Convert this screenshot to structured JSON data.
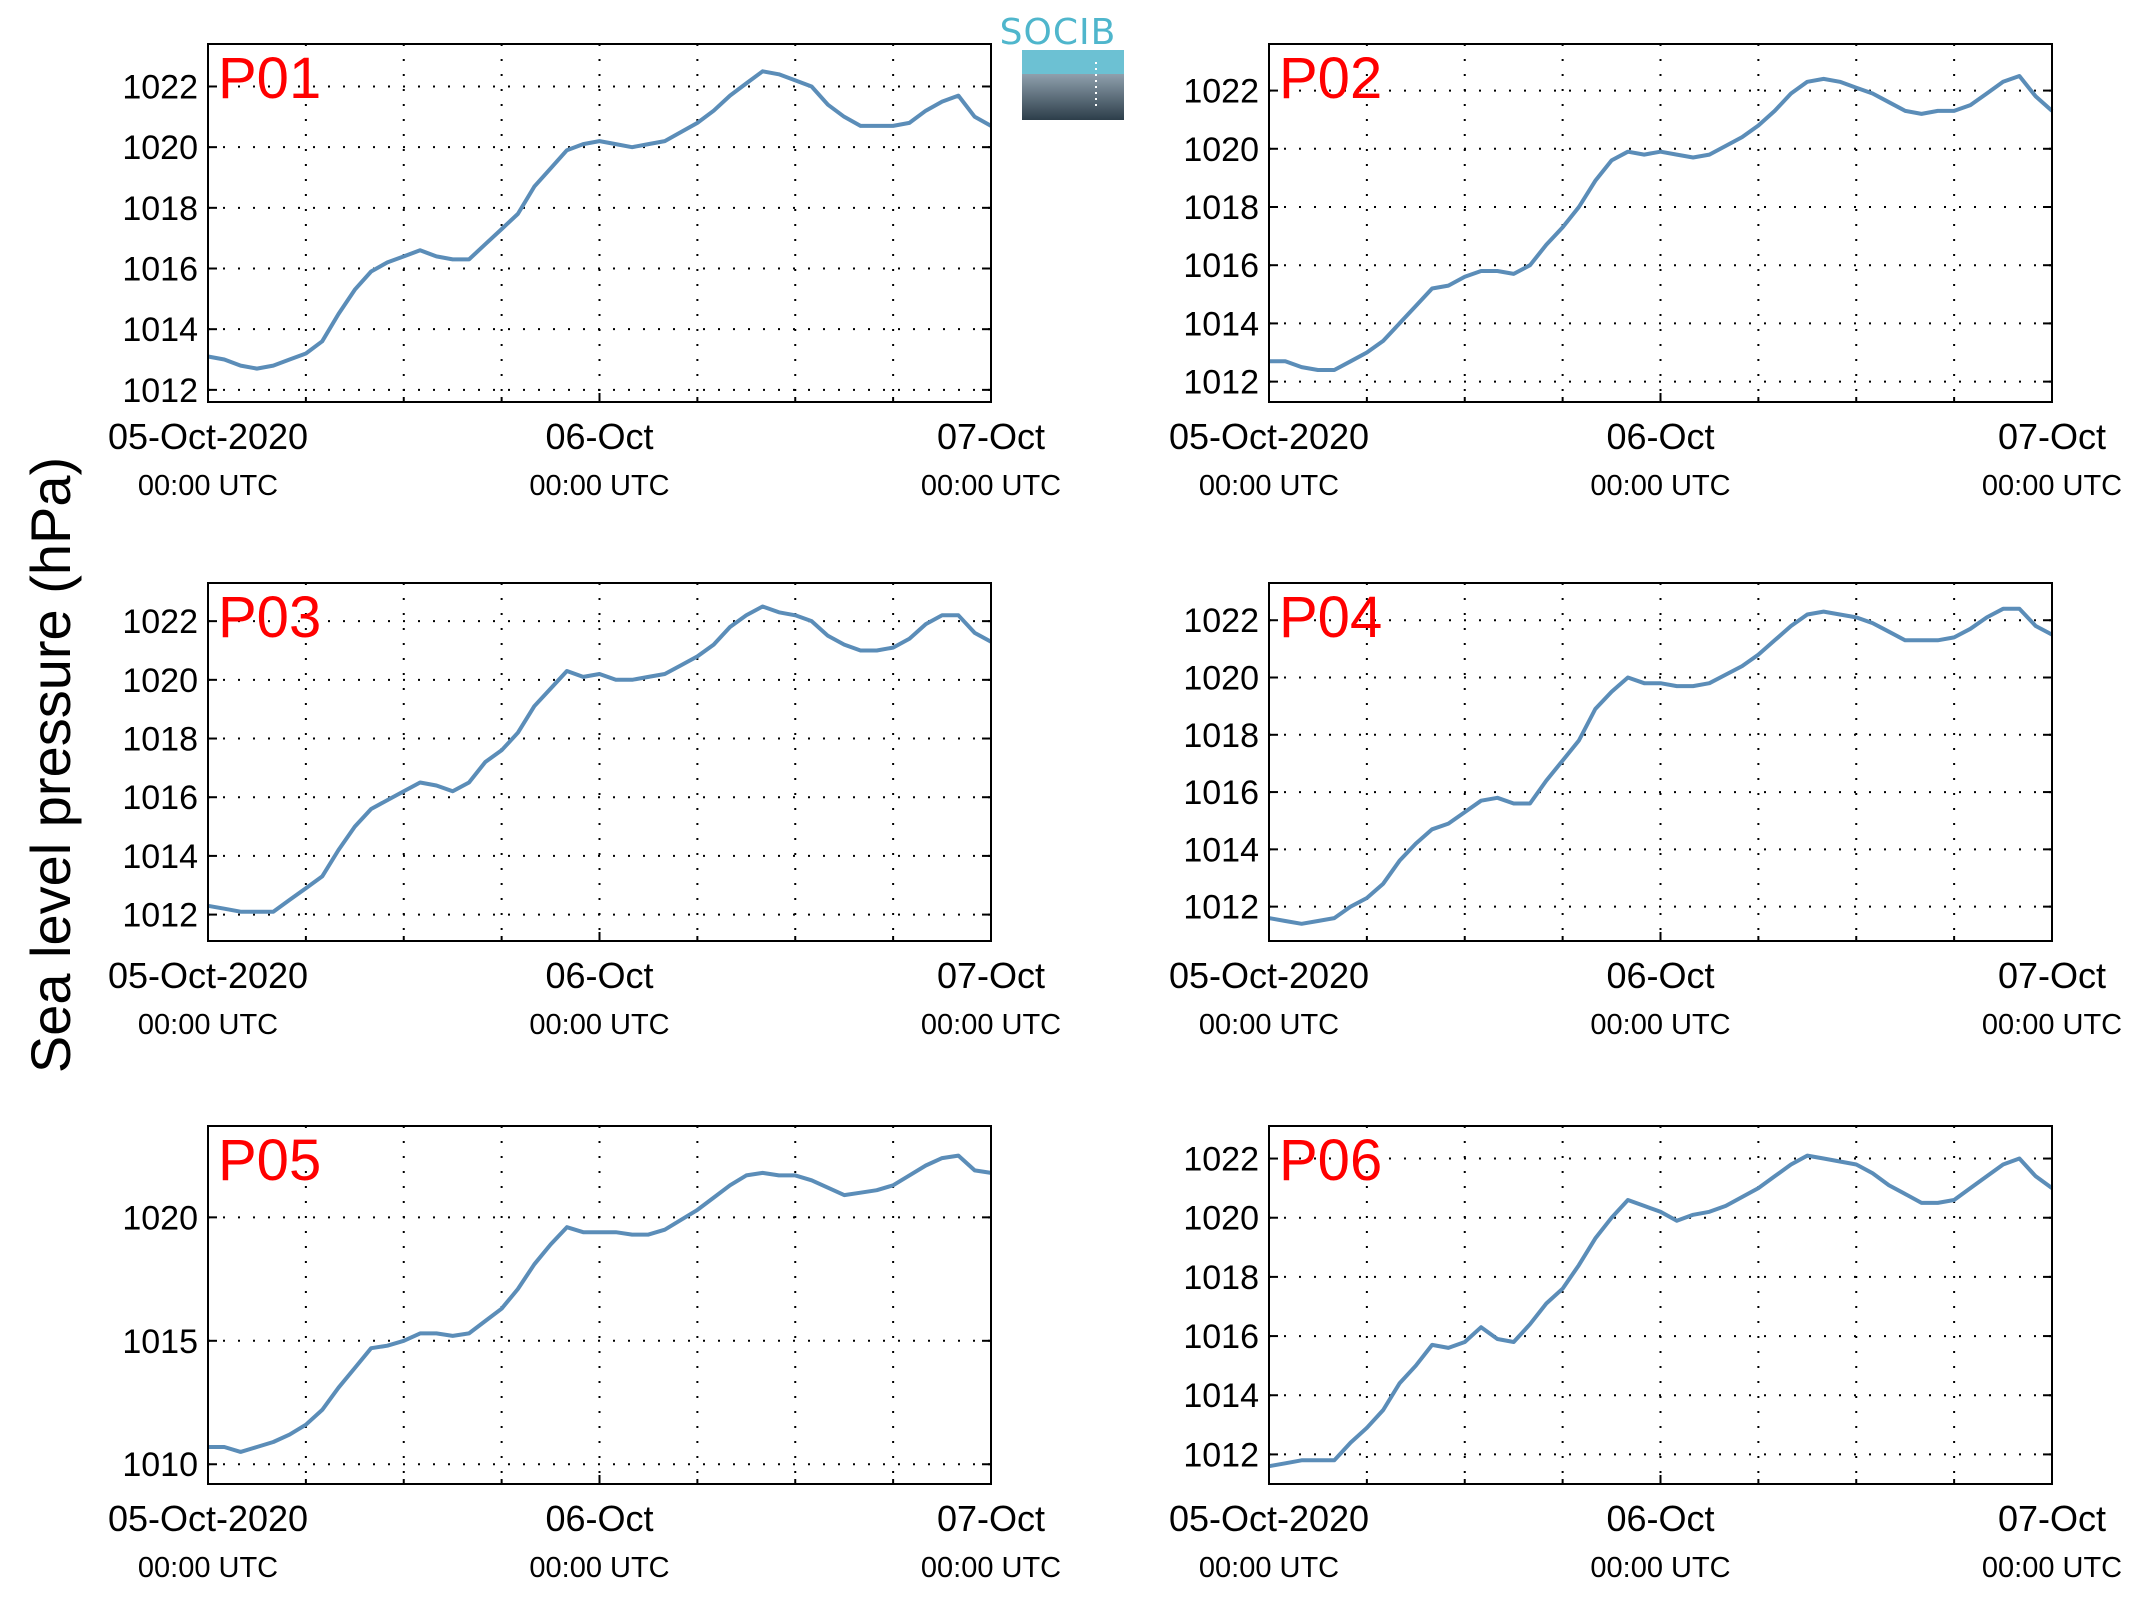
{
  "figure": {
    "ylabel": "Sea level pressure (hPa)",
    "logo_text": "SOCIB",
    "line_color": "#5b8db8",
    "label_color": "#ff0000"
  },
  "chart_data": [
    {
      "type": "line",
      "name": "P01",
      "ylim": [
        1011.6,
        1023.4
      ],
      "yticks": [
        1012,
        1014,
        1016,
        1018,
        1020,
        1022
      ],
      "xlim": [
        0,
        48
      ],
      "xticks": [
        0,
        24,
        48
      ],
      "xtick_labels": [
        [
          "05-Oct-2020",
          "00:00 UTC"
        ],
        [
          "06-Oct",
          "00:00 UTC"
        ],
        [
          "07-Oct",
          "00:00 UTC"
        ]
      ],
      "grid": true,
      "x": [
        0,
        1,
        2,
        3,
        4,
        5,
        6,
        7,
        8,
        9,
        10,
        11,
        12,
        13,
        14,
        15,
        16,
        17,
        18,
        19,
        20,
        21,
        22,
        23,
        24,
        25,
        26,
        27,
        28,
        29,
        30,
        31,
        32,
        33,
        34,
        35,
        36,
        37,
        38,
        39,
        40,
        41,
        42,
        43,
        44,
        45,
        46,
        47,
        48
      ],
      "values": [
        1013.1,
        1013.0,
        1012.8,
        1012.7,
        1012.8,
        1013.0,
        1013.2,
        1013.6,
        1014.5,
        1015.3,
        1015.9,
        1016.2,
        1016.4,
        1016.6,
        1016.4,
        1016.3,
        1016.3,
        1016.8,
        1017.3,
        1017.8,
        1018.7,
        1019.3,
        1019.9,
        1020.1,
        1020.2,
        1020.1,
        1020.0,
        1020.1,
        1020.2,
        1020.5,
        1020.8,
        1021.2,
        1021.7,
        1022.1,
        1022.5,
        1022.4,
        1022.2,
        1022.0,
        1021.4,
        1021.0,
        1020.7,
        1020.7,
        1020.7,
        1020.8,
        1021.2,
        1021.5,
        1021.7,
        1021.0,
        1020.7
      ]
    },
    {
      "type": "line",
      "name": "P02",
      "ylim": [
        1011.3,
        1023.6
      ],
      "yticks": [
        1012,
        1014,
        1016,
        1018,
        1020,
        1022
      ],
      "xlim": [
        0,
        48
      ],
      "xticks": [
        0,
        24,
        48
      ],
      "xtick_labels": [
        [
          "05-Oct-2020",
          "00:00 UTC"
        ],
        [
          "06-Oct",
          "00:00 UTC"
        ],
        [
          "07-Oct",
          "00:00 UTC"
        ]
      ],
      "grid": true,
      "x": [
        0,
        1,
        2,
        3,
        4,
        5,
        6,
        7,
        8,
        9,
        10,
        11,
        12,
        13,
        14,
        15,
        16,
        17,
        18,
        19,
        20,
        21,
        22,
        23,
        24,
        25,
        26,
        27,
        28,
        29,
        30,
        31,
        32,
        33,
        34,
        35,
        36,
        37,
        38,
        39,
        40,
        41,
        42,
        43,
        44,
        45,
        46,
        47,
        48
      ],
      "values": [
        1012.7,
        1012.7,
        1012.5,
        1012.4,
        1012.4,
        1012.7,
        1013.0,
        1013.4,
        1014.0,
        1014.6,
        1015.2,
        1015.3,
        1015.6,
        1015.8,
        1015.8,
        1015.7,
        1016.0,
        1016.7,
        1017.3,
        1018.0,
        1018.9,
        1019.6,
        1019.9,
        1019.8,
        1019.9,
        1019.8,
        1019.7,
        1019.8,
        1020.1,
        1020.4,
        1020.8,
        1021.3,
        1021.9,
        1022.3,
        1022.4,
        1022.3,
        1022.1,
        1021.9,
        1021.6,
        1021.3,
        1021.2,
        1021.3,
        1021.3,
        1021.5,
        1021.9,
        1022.3,
        1022.5,
        1021.8,
        1021.3
      ]
    },
    {
      "type": "line",
      "name": "P03",
      "ylim": [
        1011.1,
        1023.3
      ],
      "yticks": [
        1012,
        1014,
        1016,
        1018,
        1020,
        1022
      ],
      "xlim": [
        0,
        48
      ],
      "xticks": [
        0,
        24,
        48
      ],
      "xtick_labels": [
        [
          "05-Oct-2020",
          "00:00 UTC"
        ],
        [
          "06-Oct",
          "00:00 UTC"
        ],
        [
          "07-Oct",
          "00:00 UTC"
        ]
      ],
      "grid": true,
      "x": [
        0,
        1,
        2,
        3,
        4,
        5,
        6,
        7,
        8,
        9,
        10,
        11,
        12,
        13,
        14,
        15,
        16,
        17,
        18,
        19,
        20,
        21,
        22,
        23,
        24,
        25,
        26,
        27,
        28,
        29,
        30,
        31,
        32,
        33,
        34,
        35,
        36,
        37,
        38,
        39,
        40,
        41,
        42,
        43,
        44,
        45,
        46,
        47,
        48
      ],
      "values": [
        1012.3,
        1012.2,
        1012.1,
        1012.1,
        1012.1,
        1012.5,
        1012.9,
        1013.3,
        1014.2,
        1015.0,
        1015.6,
        1015.9,
        1016.2,
        1016.5,
        1016.4,
        1016.2,
        1016.5,
        1017.2,
        1017.6,
        1018.2,
        1019.1,
        1019.7,
        1020.3,
        1020.1,
        1020.2,
        1020.0,
        1020.0,
        1020.1,
        1020.2,
        1020.5,
        1020.8,
        1021.2,
        1021.8,
        1022.2,
        1022.5,
        1022.3,
        1022.2,
        1022.0,
        1021.5,
        1021.2,
        1021.0,
        1021.0,
        1021.1,
        1021.4,
        1021.9,
        1022.2,
        1022.2,
        1021.6,
        1021.3
      ]
    },
    {
      "type": "line",
      "name": "P04",
      "ylim": [
        1010.8,
        1023.3
      ],
      "yticks": [
        1012,
        1014,
        1016,
        1018,
        1020,
        1022
      ],
      "xlim": [
        0,
        48
      ],
      "xticks": [
        0,
        24,
        48
      ],
      "xtick_labels": [
        [
          "05-Oct-2020",
          "00:00 UTC"
        ],
        [
          "06-Oct",
          "00:00 UTC"
        ],
        [
          "07-Oct",
          "00:00 UTC"
        ]
      ],
      "grid": true,
      "x": [
        0,
        1,
        2,
        3,
        4,
        5,
        6,
        7,
        8,
        9,
        10,
        11,
        12,
        13,
        14,
        15,
        16,
        17,
        18,
        19,
        20,
        21,
        22,
        23,
        24,
        25,
        26,
        27,
        28,
        29,
        30,
        31,
        32,
        33,
        34,
        35,
        36,
        37,
        38,
        39,
        40,
        41,
        42,
        43,
        44,
        45,
        46,
        47,
        48
      ],
      "values": [
        1011.6,
        1011.5,
        1011.4,
        1011.5,
        1011.6,
        1012.0,
        1012.3,
        1012.8,
        1013.6,
        1014.2,
        1014.7,
        1014.9,
        1015.3,
        1015.7,
        1015.8,
        1015.6,
        1015.6,
        1016.4,
        1017.1,
        1017.8,
        1018.9,
        1019.5,
        1020.0,
        1019.8,
        1019.8,
        1019.7,
        1019.7,
        1019.8,
        1020.1,
        1020.4,
        1020.8,
        1021.3,
        1021.8,
        1022.2,
        1022.3,
        1022.2,
        1022.1,
        1021.9,
        1021.6,
        1021.3,
        1021.3,
        1021.3,
        1021.4,
        1021.7,
        1022.1,
        1022.4,
        1022.4,
        1021.8,
        1021.5
      ]
    },
    {
      "type": "line",
      "name": "P05",
      "ylim": [
        1009.2,
        1023.7
      ],
      "yticks": [
        1010,
        1015,
        1020
      ],
      "xlim": [
        0,
        48
      ],
      "xticks": [
        0,
        24,
        48
      ],
      "xtick_labels": [
        [
          "05-Oct-2020",
          "00:00 UTC"
        ],
        [
          "06-Oct",
          "00:00 UTC"
        ],
        [
          "07-Oct",
          "00:00 UTC"
        ]
      ],
      "grid": true,
      "x": [
        0,
        1,
        2,
        3,
        4,
        5,
        6,
        7,
        8,
        9,
        10,
        11,
        12,
        13,
        14,
        15,
        16,
        17,
        18,
        19,
        20,
        21,
        22,
        23,
        24,
        25,
        26,
        27,
        28,
        29,
        30,
        31,
        32,
        33,
        34,
        35,
        36,
        37,
        38,
        39,
        40,
        41,
        42,
        43,
        44,
        45,
        46,
        47,
        48
      ],
      "values": [
        1010.7,
        1010.7,
        1010.5,
        1010.7,
        1010.9,
        1011.2,
        1011.6,
        1012.2,
        1013.1,
        1013.9,
        1014.7,
        1014.8,
        1015.0,
        1015.3,
        1015.3,
        1015.2,
        1015.3,
        1015.8,
        1016.3,
        1017.1,
        1018.1,
        1018.9,
        1019.6,
        1019.4,
        1019.4,
        1019.4,
        1019.3,
        1019.3,
        1019.5,
        1019.9,
        1020.3,
        1020.8,
        1021.3,
        1021.7,
        1021.8,
        1021.7,
        1021.7,
        1021.5,
        1021.2,
        1020.9,
        1021.0,
        1021.1,
        1021.3,
        1021.7,
        1022.1,
        1022.4,
        1022.5,
        1021.9,
        1021.8
      ]
    },
    {
      "type": "line",
      "name": "P06",
      "ylim": [
        1011.0,
        1023.1
      ],
      "yticks": [
        1012,
        1014,
        1016,
        1018,
        1020,
        1022
      ],
      "xlim": [
        0,
        48
      ],
      "xticks": [
        0,
        24,
        48
      ],
      "xtick_labels": [
        [
          "05-Oct-2020",
          "00:00 UTC"
        ],
        [
          "06-Oct",
          "00:00 UTC"
        ],
        [
          "07-Oct",
          "00:00 UTC"
        ]
      ],
      "grid": true,
      "x": [
        0,
        1,
        2,
        3,
        4,
        5,
        6,
        7,
        8,
        9,
        10,
        11,
        12,
        13,
        14,
        15,
        16,
        17,
        18,
        19,
        20,
        21,
        22,
        23,
        24,
        25,
        26,
        27,
        28,
        29,
        30,
        31,
        32,
        33,
        34,
        35,
        36,
        37,
        38,
        39,
        40,
        41,
        42,
        43,
        44,
        45,
        46,
        47,
        48
      ],
      "values": [
        1011.6,
        1011.7,
        1011.8,
        1011.8,
        1011.8,
        1012.4,
        1012.9,
        1013.5,
        1014.4,
        1015.0,
        1015.7,
        1015.6,
        1015.8,
        1016.3,
        1015.9,
        1015.8,
        1016.4,
        1017.1,
        1017.6,
        1018.4,
        1019.3,
        1020.0,
        1020.6,
        1020.4,
        1020.2,
        1019.9,
        1020.1,
        1020.2,
        1020.4,
        1020.7,
        1021.0,
        1021.4,
        1021.8,
        1022.1,
        1022.0,
        1021.9,
        1021.8,
        1021.5,
        1021.1,
        1020.8,
        1020.5,
        1020.5,
        1020.6,
        1021.0,
        1021.4,
        1021.8,
        1022.0,
        1021.4,
        1021.0
      ]
    }
  ]
}
